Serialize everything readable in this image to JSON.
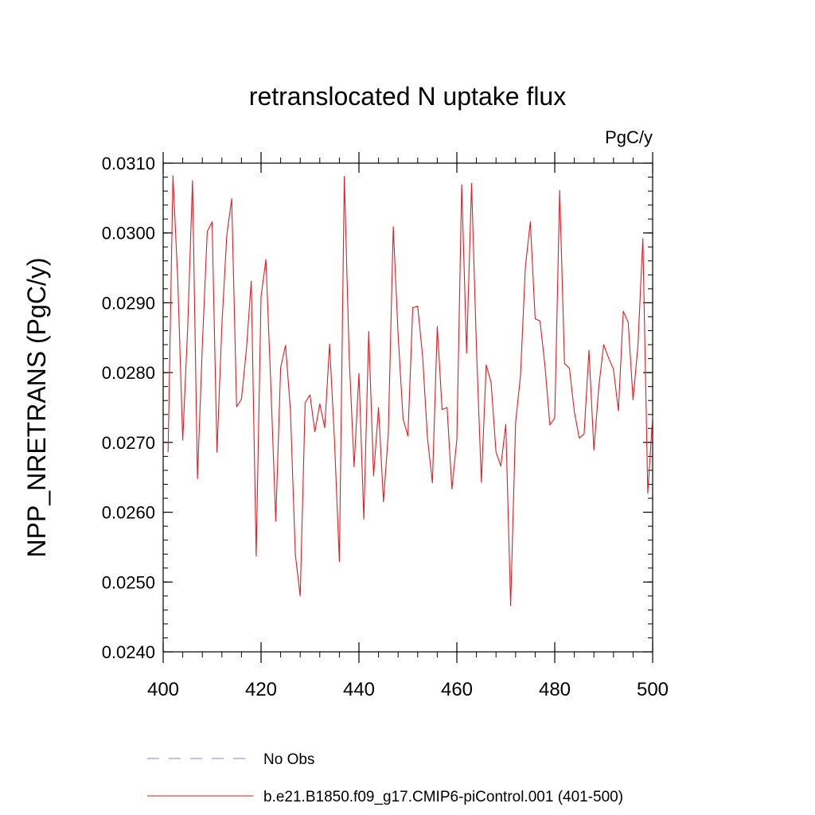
{
  "chart_data": {
    "type": "line",
    "title": "retranslocated N uptake flux",
    "units_label": "PgC/y",
    "ylabel": "NPP_NRETRANS  (PgC/y)",
    "xlabel": "",
    "xlim": [
      400,
      500
    ],
    "ylim": [
      0.024,
      0.031
    ],
    "x_ticks": [
      "400",
      "420",
      "440",
      "460",
      "480",
      "500"
    ],
    "y_ticks": [
      "0.0240",
      "0.0250",
      "0.0260",
      "0.0270",
      "0.0280",
      "0.0290",
      "0.0300",
      "0.0310"
    ],
    "grid": false,
    "legend_position": "bottom",
    "series": [
      {
        "name": "No Obs",
        "color": "#8a7fd6",
        "style": "dashed",
        "x": [],
        "y": []
      },
      {
        "name": "b.e21.B1850.f09_g17.CMIP6-piControl.001 (401-500)",
        "color": "#e8191f",
        "style": "solid",
        "x": [
          401,
          402,
          403,
          404,
          405,
          406,
          407,
          408,
          409,
          410,
          411,
          412,
          413,
          414,
          415,
          416,
          417,
          418,
          419,
          420,
          421,
          422,
          423,
          424,
          425,
          426,
          427,
          428,
          429,
          430,
          431,
          432,
          433,
          434,
          435,
          436,
          437,
          438,
          439,
          440,
          441,
          442,
          443,
          444,
          445,
          446,
          447,
          448,
          449,
          450,
          451,
          452,
          453,
          454,
          455,
          456,
          457,
          458,
          459,
          460,
          461,
          462,
          463,
          464,
          465,
          466,
          467,
          468,
          469,
          470,
          471,
          472,
          473,
          474,
          475,
          476,
          477,
          478,
          479,
          480,
          481,
          482,
          483,
          484,
          485,
          486,
          487,
          488,
          489,
          490,
          491,
          492,
          493,
          494,
          495,
          496,
          497,
          498,
          499,
          500
        ],
        "y": [
          0.02686,
          0.03082,
          0.02932,
          0.02703,
          0.02864,
          0.03075,
          0.02648,
          0.02838,
          0.03002,
          0.03016,
          0.02686,
          0.02868,
          0.02996,
          0.03049,
          0.02751,
          0.02762,
          0.02833,
          0.02931,
          0.02537,
          0.02909,
          0.02962,
          0.02781,
          0.02587,
          0.02807,
          0.02839,
          0.02746,
          0.02539,
          0.0248,
          0.02757,
          0.02768,
          0.02715,
          0.02755,
          0.02721,
          0.02841,
          0.02702,
          0.02529,
          0.03081,
          0.02823,
          0.02665,
          0.02799,
          0.0259,
          0.02859,
          0.02652,
          0.0275,
          0.02615,
          0.02713,
          0.03009,
          0.02854,
          0.02734,
          0.02709,
          0.02893,
          0.02895,
          0.02823,
          0.02706,
          0.02642,
          0.02866,
          0.02747,
          0.0275,
          0.02633,
          0.02704,
          0.03069,
          0.02828,
          0.03071,
          0.02836,
          0.02643,
          0.02811,
          0.02786,
          0.02686,
          0.02666,
          0.02726,
          0.02466,
          0.02728,
          0.02796,
          0.02951,
          0.03016,
          0.02877,
          0.02874,
          0.0281,
          0.02725,
          0.02735,
          0.03061,
          0.02813,
          0.02806,
          0.02744,
          0.02706,
          0.02712,
          0.02832,
          0.02689,
          0.0278,
          0.0284,
          0.02821,
          0.02805,
          0.02745,
          0.02888,
          0.02872,
          0.02761,
          0.02838,
          0.02992,
          0.02627,
          0.02737
        ]
      }
    ]
  }
}
